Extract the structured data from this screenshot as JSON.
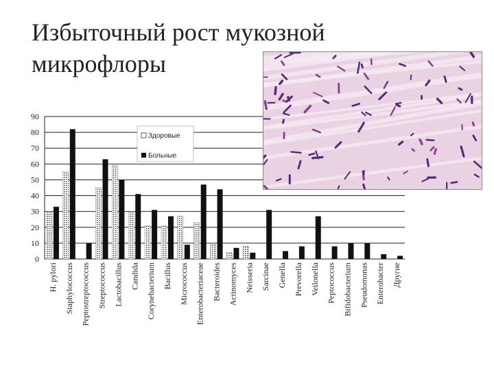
{
  "slide": {
    "title_line1": "Избыточный рост мукозной",
    "title_line2": "микрофлоры"
  },
  "chart_data": {
    "type": "bar",
    "ylim": [
      0,
      90
    ],
    "yticks": [
      0,
      10,
      20,
      30,
      40,
      50,
      60,
      70,
      80,
      90
    ],
    "grid": true,
    "legend_position": "top-center",
    "categories": [
      "H. pylori",
      "Staphylococcus",
      "Peptostreptococcus",
      "Streptococcus",
      "Lactobacillus",
      "Candida",
      "Corynebacterium",
      "Bacillus",
      "Micrococcus",
      "Enterobacteriaceae",
      "Bacteroides",
      "Actinomyces",
      "Neisseria",
      "Sarcinae",
      "Genella",
      "Prevorella",
      "Veilonella",
      "Peptococcus",
      "Bifidobacterium",
      "Pseudomonas",
      "Enterobacter",
      "Другие"
    ],
    "series": [
      {
        "name": "Здоровые",
        "values": [
          30,
          55,
          0,
          45,
          59,
          30,
          21,
          21,
          27,
          23,
          9,
          4,
          8,
          0,
          0,
          0,
          0,
          0,
          0,
          0,
          0,
          0
        ],
        "color": "#ffffff",
        "pattern": "dotted-outline"
      },
      {
        "name": "Больные",
        "values": [
          33,
          82,
          10,
          63,
          50,
          41,
          31,
          27,
          9,
          47,
          44,
          7,
          4,
          31,
          5,
          8,
          27,
          8,
          10,
          10,
          3,
          2
        ],
        "color": "#111111",
        "pattern": "solid"
      }
    ]
  },
  "image": {
    "description_icon": "micrograph-stained-bacteria"
  }
}
